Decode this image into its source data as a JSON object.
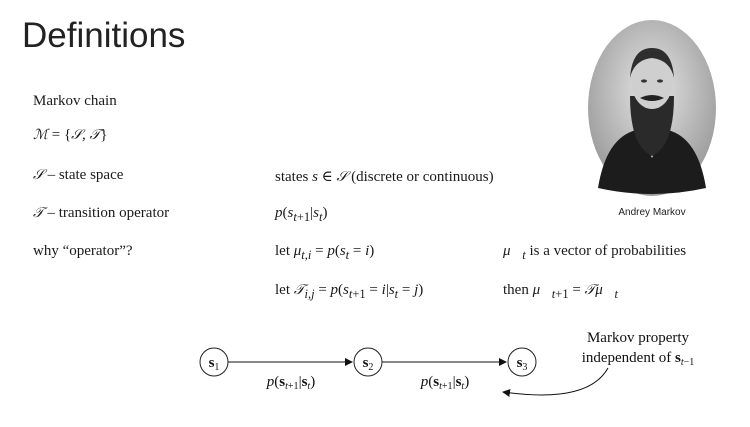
{
  "slide": {
    "title": "Definitions"
  },
  "portrait": {
    "caption": "Andrey Markov"
  },
  "definitions": {
    "markov_chain": "Markov chain",
    "m_def": "ℳ = {𝒮, 𝒯}",
    "state_space_label": "𝒮 – state space",
    "transition_label": "𝒯 – transition operator",
    "why_operator": "why “operator”?",
    "states_text": "states s ∈ 𝒮 (discrete or continuous)",
    "transition_prob": "p(sₜ₊₁|sₜ)",
    "mu_def": "let μₜ,ᵢ = p(sₜ = i)",
    "t_def": "let 𝒯ᵢ,ⱼ = p(sₜ₊₁ = i|sₜ = j)",
    "vector_text": "μ⃗ₜ is a vector of probabilities",
    "then_text": "then μ⃗ₜ₊₁ = 𝒯μ⃗ₜ"
  },
  "diagram": {
    "nodes": [
      "s₁",
      "s₂",
      "s₃"
    ],
    "edge_labels": [
      "p(sₜ₊₁|sₜ)",
      "p(sₜ₊₁|sₜ)"
    ],
    "annotation_line1": "Markov property",
    "annotation_line2": "independent of sₜ₋₁"
  }
}
